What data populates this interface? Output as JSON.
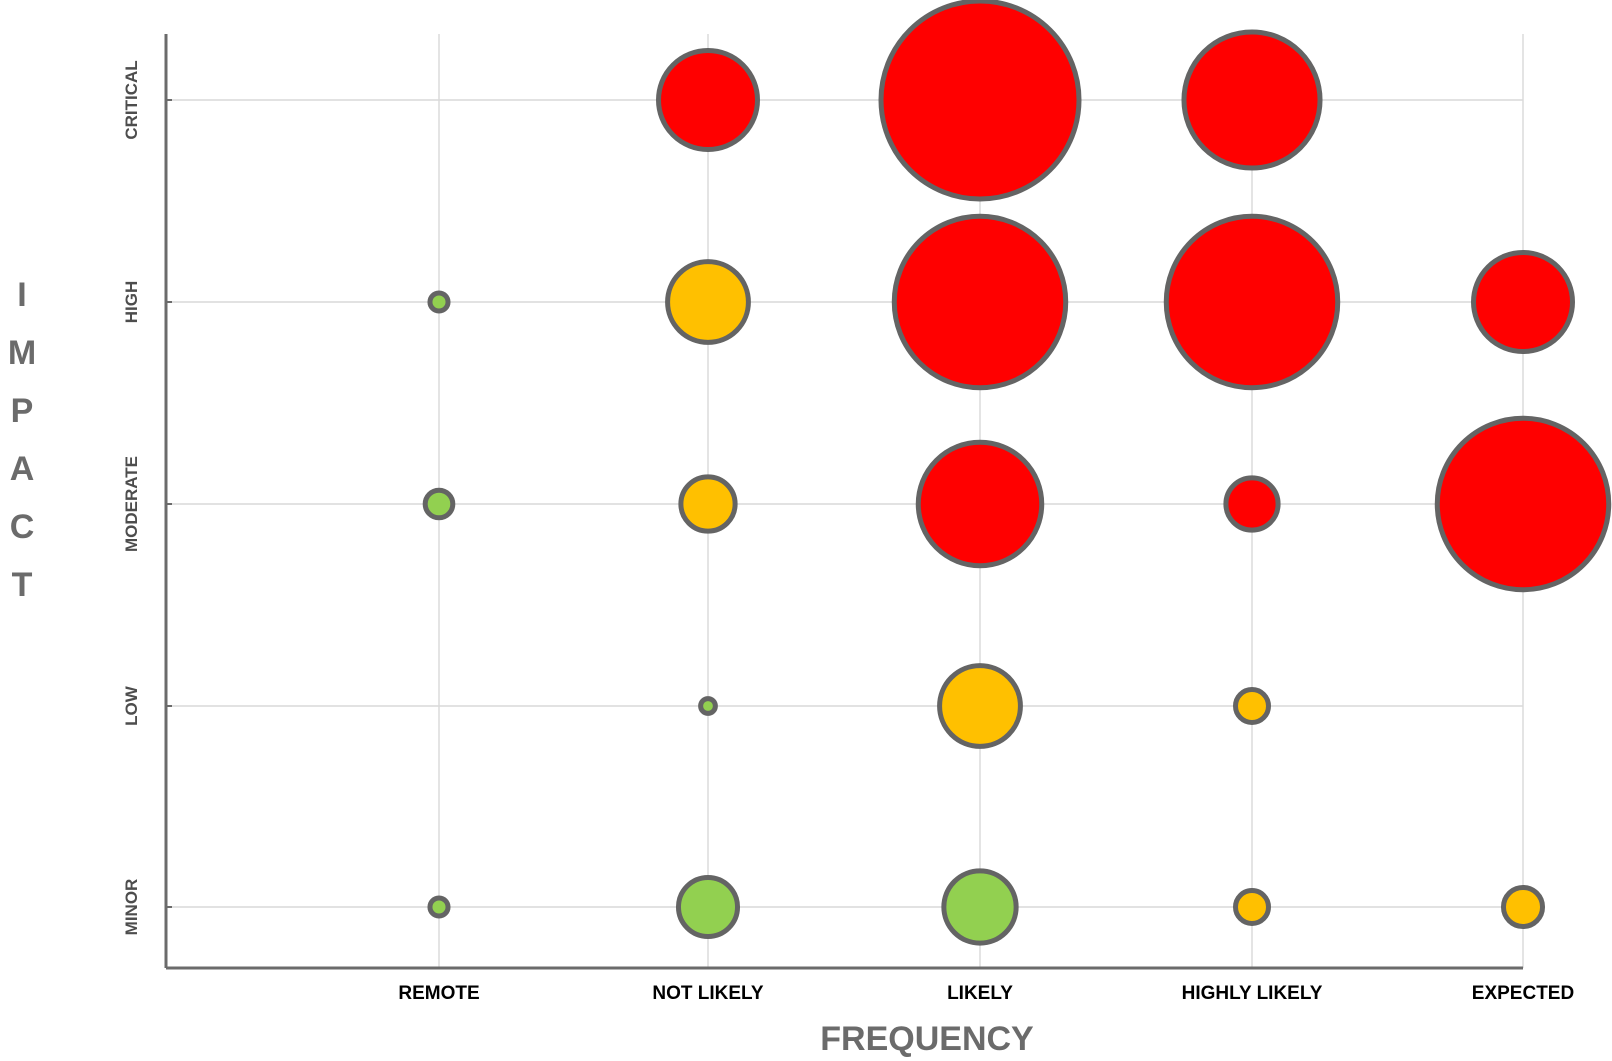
{
  "chart_data": {
    "type": "bubble",
    "xlabel": "FREQUENCY",
    "ylabel": "IMPACT",
    "x_categories": [
      "REMOTE",
      "NOT LIKELY",
      "LIKELY",
      "HIGHLY LIKELY",
      "EXPECTED"
    ],
    "y_categories": [
      "MINOR",
      "LOW",
      "MODERATE",
      "HIGH",
      "CRITICAL"
    ],
    "grid": true,
    "legend": "none",
    "colors": {
      "red": "#ff0000",
      "amber": "#ffc000",
      "green": "#92d050",
      "outline": "#646464"
    },
    "points": [
      {
        "x": "NOT LIKELY",
        "y": "CRITICAL",
        "size": 9,
        "color": "red"
      },
      {
        "x": "LIKELY",
        "y": "CRITICAL",
        "size": 36,
        "color": "red"
      },
      {
        "x": "HIGHLY LIKELY",
        "y": "CRITICAL",
        "size": 17,
        "color": "red"
      },
      {
        "x": "REMOTE",
        "y": "HIGH",
        "size": 0.3,
        "color": "green"
      },
      {
        "x": "NOT LIKELY",
        "y": "HIGH",
        "size": 6,
        "color": "amber"
      },
      {
        "x": "LIKELY",
        "y": "HIGH",
        "size": 27,
        "color": "red"
      },
      {
        "x": "HIGHLY LIKELY",
        "y": "HIGH",
        "size": 27,
        "color": "red"
      },
      {
        "x": "EXPECTED",
        "y": "HIGH",
        "size": 9,
        "color": "red"
      },
      {
        "x": "REMOTE",
        "y": "MODERATE",
        "size": 0.7,
        "color": "green"
      },
      {
        "x": "NOT LIKELY",
        "y": "MODERATE",
        "size": 2.7,
        "color": "amber"
      },
      {
        "x": "LIKELY",
        "y": "MODERATE",
        "size": 14,
        "color": "red"
      },
      {
        "x": "HIGHLY LIKELY",
        "y": "MODERATE",
        "size": 2.5,
        "color": "red"
      },
      {
        "x": "EXPECTED",
        "y": "MODERATE",
        "size": 27,
        "color": "red"
      },
      {
        "x": "NOT LIKELY",
        "y": "LOW",
        "size": 0.2,
        "color": "green"
      },
      {
        "x": "LIKELY",
        "y": "LOW",
        "size": 6,
        "color": "amber"
      },
      {
        "x": "HIGHLY LIKELY",
        "y": "LOW",
        "size": 1,
        "color": "amber"
      },
      {
        "x": "REMOTE",
        "y": "MINOR",
        "size": 0.3,
        "color": "green"
      },
      {
        "x": "NOT LIKELY",
        "y": "MINOR",
        "size": 3.2,
        "color": "green"
      },
      {
        "x": "LIKELY",
        "y": "MINOR",
        "size": 4.8,
        "color": "green"
      },
      {
        "x": "HIGHLY LIKELY",
        "y": "MINOR",
        "size": 1,
        "color": "amber"
      },
      {
        "x": "EXPECTED",
        "y": "MINOR",
        "size": 1.4,
        "color": "amber"
      }
    ]
  }
}
